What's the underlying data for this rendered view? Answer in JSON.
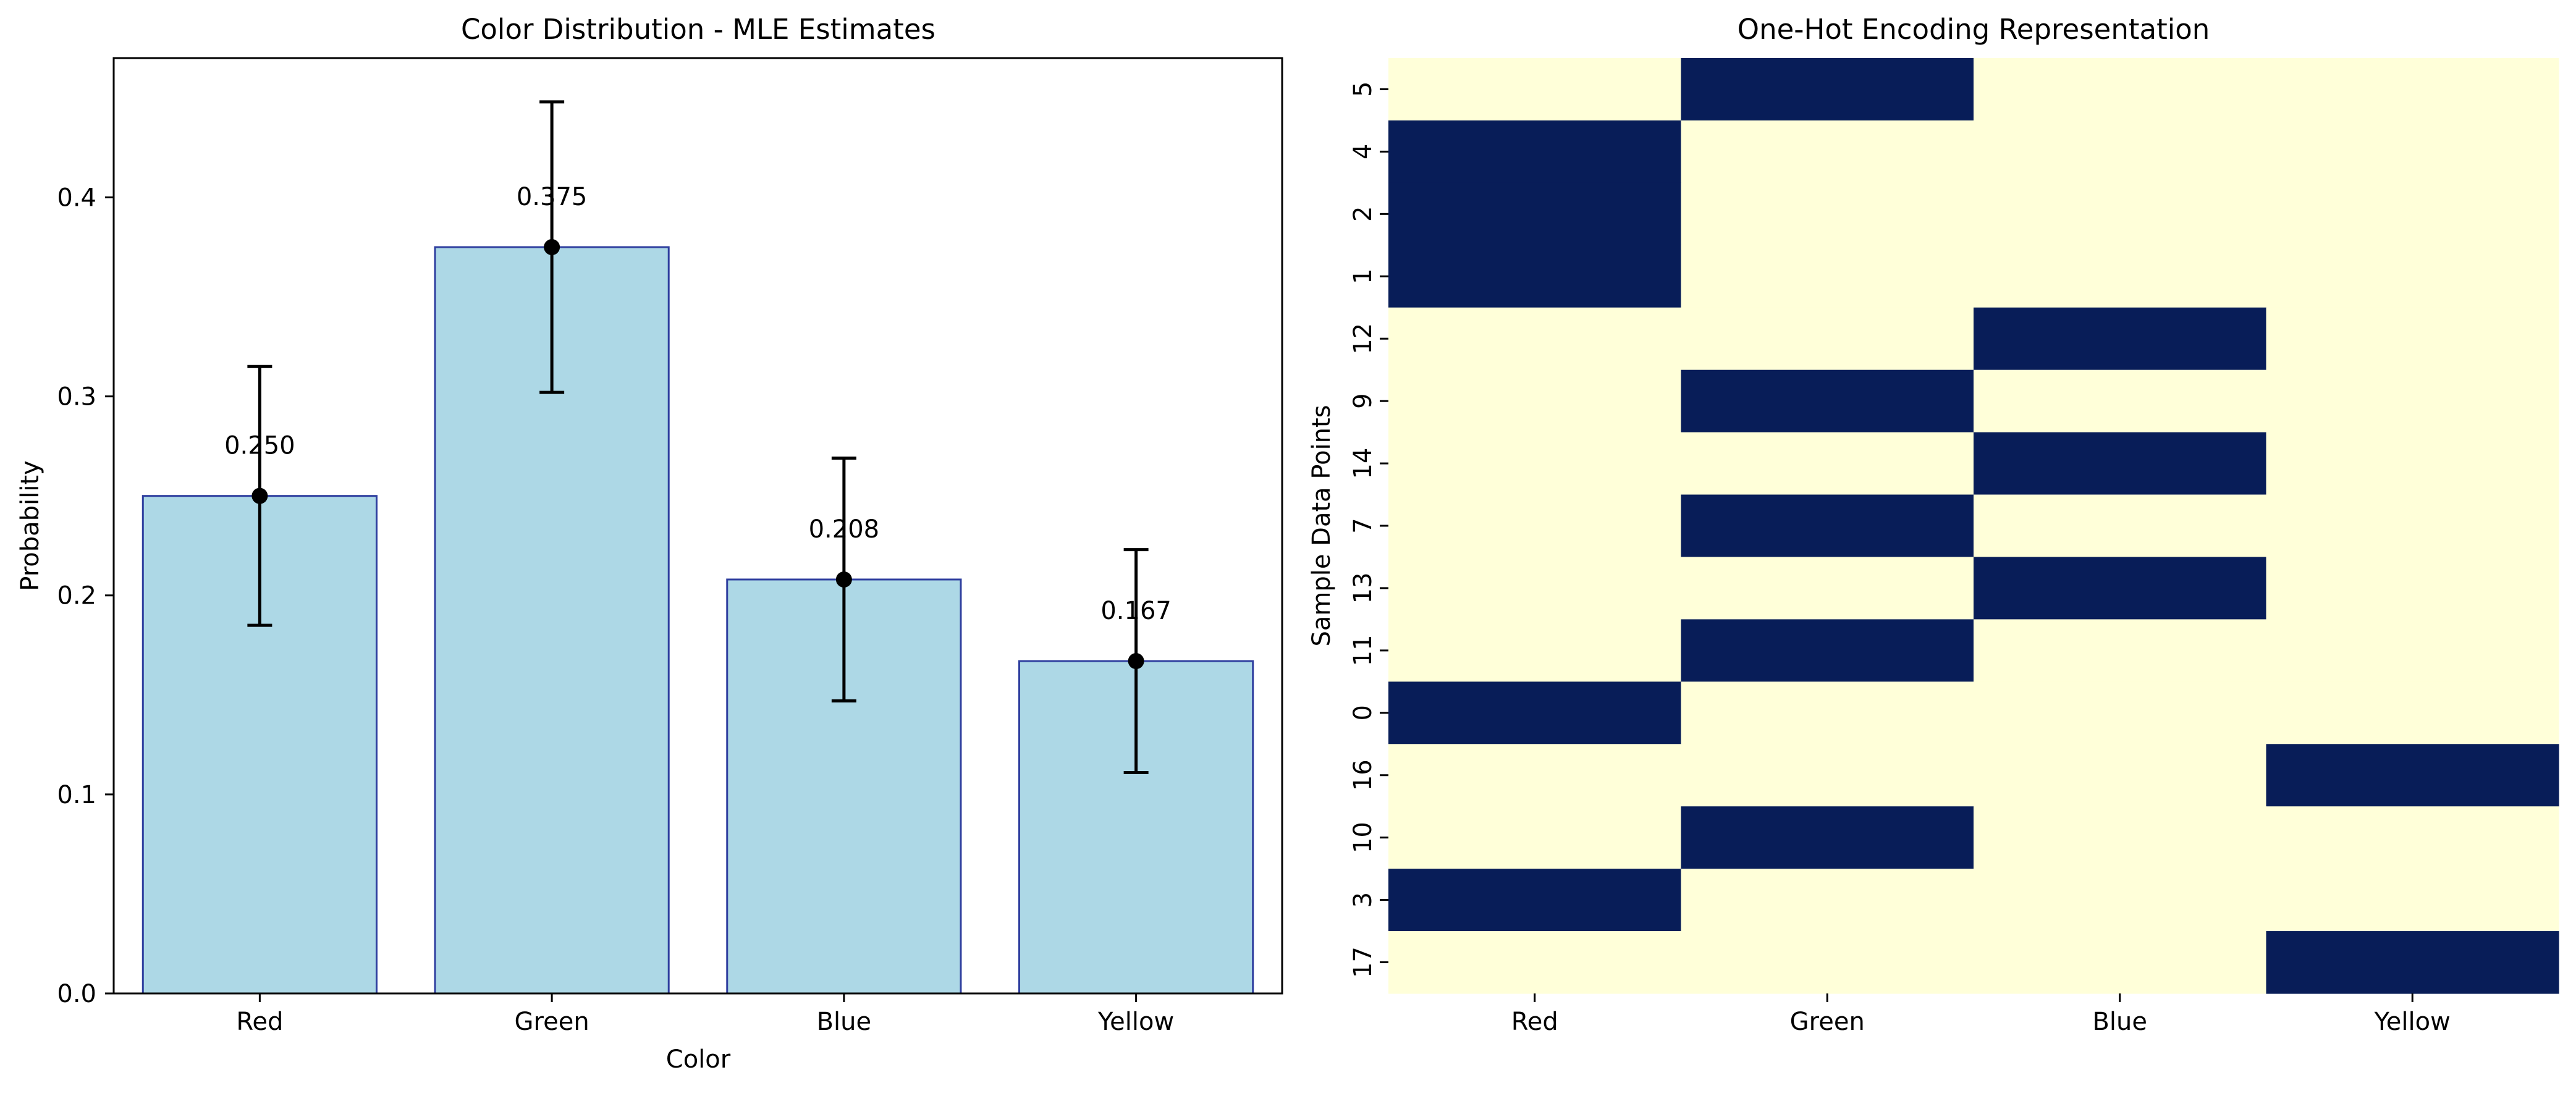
{
  "chart_data": [
    {
      "type": "bar",
      "title": "Color Distribution - MLE Estimates",
      "xlabel": "Color",
      "ylabel": "Probability",
      "categories": [
        "Red",
        "Green",
        "Blue",
        "Yellow"
      ],
      "values": [
        0.25,
        0.375,
        0.208,
        0.167
      ],
      "value_labels": [
        "0.250",
        "0.375",
        "0.208",
        "0.167"
      ],
      "error_low": [
        0.185,
        0.302,
        0.147,
        0.111
      ],
      "error_high": [
        0.315,
        0.448,
        0.269,
        0.223
      ],
      "ylim": [
        0,
        0.47
      ],
      "yticks": [
        0.0,
        0.1,
        0.2,
        0.3,
        0.4
      ],
      "ytick_labels": [
        "0.0",
        "0.1",
        "0.2",
        "0.3",
        "0.4"
      ],
      "grid": false,
      "colors": {
        "bar_fill": "#add8e6",
        "bar_edge": "#2f3f9f",
        "error": "#000000",
        "point": "#000000"
      }
    },
    {
      "type": "heatmap",
      "title": "One-Hot Encoding Representation",
      "xlabel": "",
      "ylabel": "Sample Data Points",
      "columns": [
        "Red",
        "Green",
        "Blue",
        "Yellow"
      ],
      "rows": [
        "5",
        "4",
        "2",
        "1",
        "12",
        "9",
        "14",
        "7",
        "13",
        "11",
        "0",
        "16",
        "10",
        "3",
        "17"
      ],
      "values": [
        [
          0,
          1,
          0,
          0
        ],
        [
          1,
          0,
          0,
          0
        ],
        [
          1,
          0,
          0,
          0
        ],
        [
          1,
          0,
          0,
          0
        ],
        [
          0,
          0,
          1,
          0
        ],
        [
          0,
          1,
          0,
          0
        ],
        [
          0,
          0,
          1,
          0
        ],
        [
          0,
          1,
          0,
          0
        ],
        [
          0,
          0,
          1,
          0
        ],
        [
          0,
          1,
          0,
          0
        ],
        [
          1,
          0,
          0,
          0
        ],
        [
          0,
          0,
          0,
          1
        ],
        [
          0,
          1,
          0,
          0
        ],
        [
          1,
          0,
          0,
          0
        ],
        [
          0,
          0,
          0,
          1
        ]
      ],
      "colors": {
        "zero": "#ffffd9",
        "one": "#081d58"
      }
    }
  ]
}
